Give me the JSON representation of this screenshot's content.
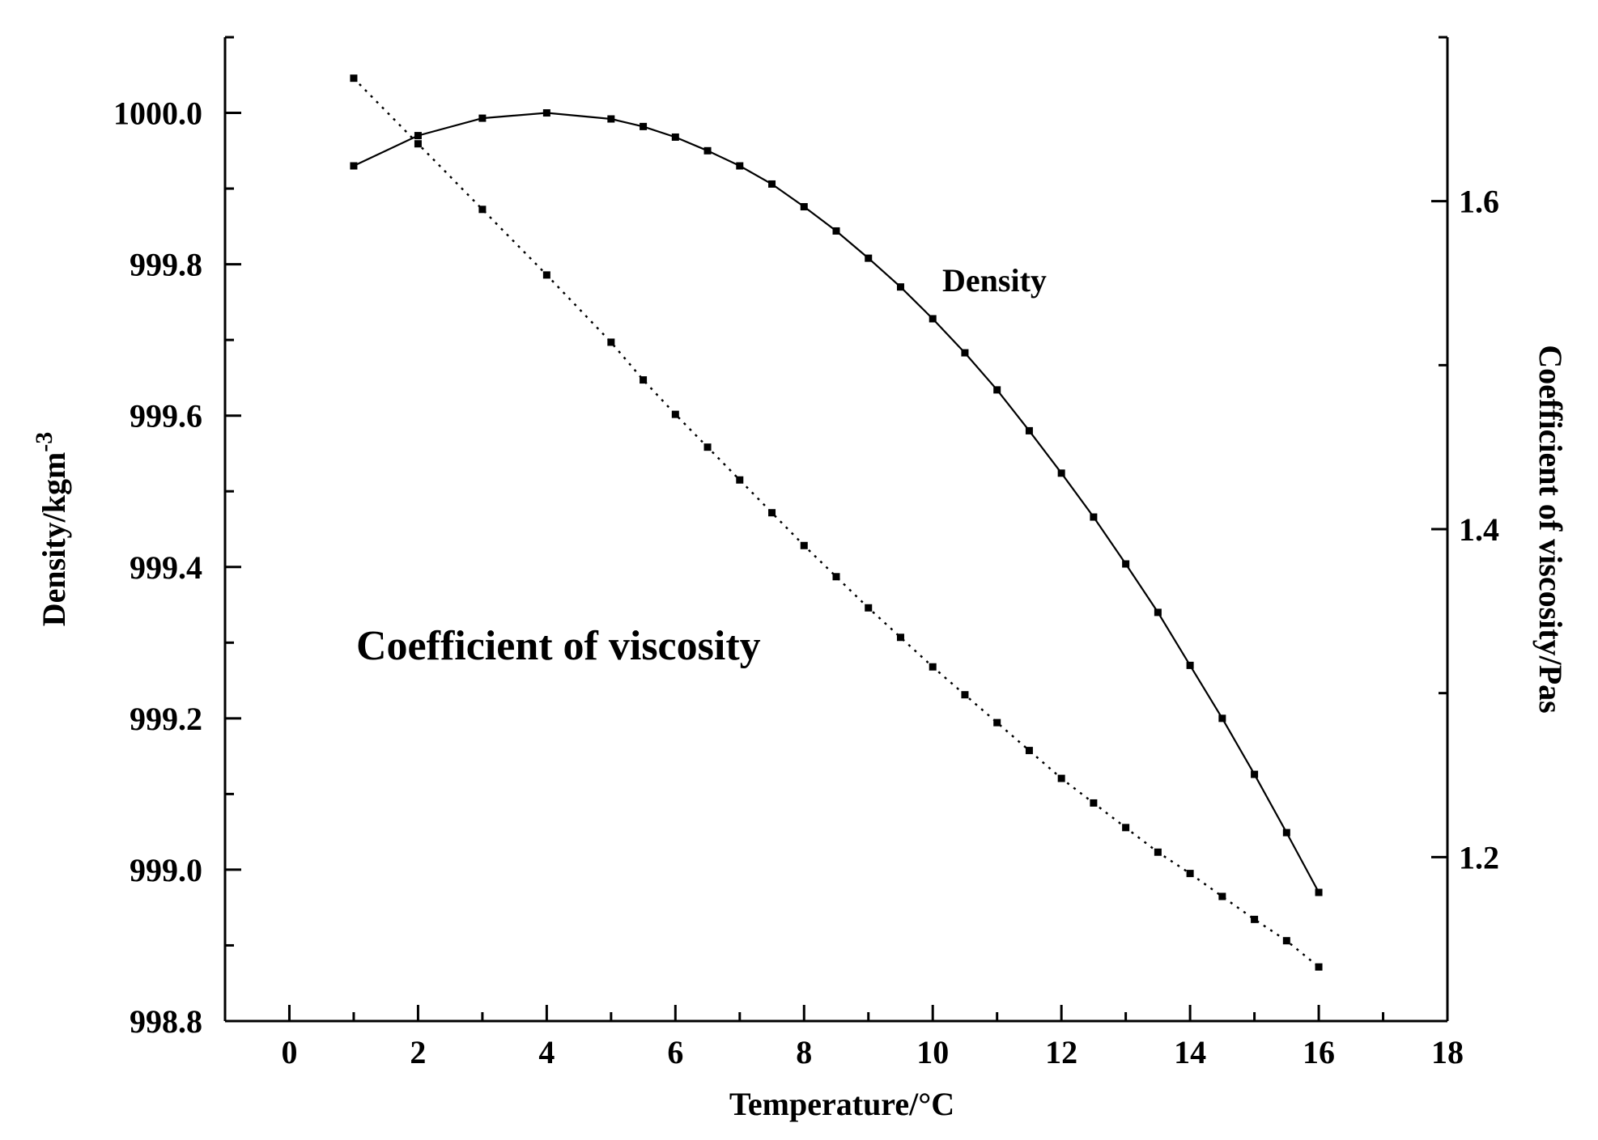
{
  "chart_data": {
    "type": "line",
    "xlabel": "Temperature/°C",
    "ylabel_left": "Density/kgm",
    "ylabel_left_superscript": "-3",
    "ylabel_right": "Coefficient of viscosity/Pas",
    "xlim": [
      -1,
      18
    ],
    "ylim_left": [
      998.8,
      1000.1
    ],
    "ylim_right": [
      1.1,
      1.7
    ],
    "x_ticks": [
      0,
      2,
      4,
      6,
      8,
      10,
      12,
      14,
      16,
      18
    ],
    "x_tick_labels": [
      "0",
      "2",
      "4",
      "6",
      "8",
      "10",
      "12",
      "14",
      "16",
      "18"
    ],
    "y_left_ticks": [
      998.8,
      999.0,
      999.2,
      999.4,
      999.6,
      999.8,
      1000.0
    ],
    "y_left_tick_labels": [
      "998.8",
      "999.0",
      "999.2",
      "999.4",
      "999.6",
      "999.8",
      "1000.0"
    ],
    "y_right_ticks": [
      1.2,
      1.4,
      1.6
    ],
    "y_right_tick_labels": [
      "1.2",
      "1.4",
      "1.6"
    ],
    "grid": false,
    "series": [
      {
        "name": "Density",
        "axis": "left",
        "line_style": "solid",
        "color": "#000000",
        "x": [
          1,
          2,
          3,
          4,
          5,
          5.5,
          6,
          6.5,
          7,
          7.5,
          8,
          8.5,
          9,
          9.5,
          10,
          10.5,
          11,
          11.5,
          12,
          12.5,
          13,
          13.5,
          14,
          14.5,
          15,
          15.5,
          16
        ],
        "y": [
          999.93,
          999.97,
          999.993,
          1000.0,
          999.992,
          999.982,
          999.968,
          999.95,
          999.93,
          999.906,
          999.876,
          999.844,
          999.808,
          999.77,
          999.728,
          999.683,
          999.634,
          999.58,
          999.524,
          999.466,
          999.404,
          999.34,
          999.27,
          999.2,
          999.126,
          999.049,
          998.97
        ]
      },
      {
        "name": "Coefficient of viscosity",
        "axis": "right",
        "line_style": "dotted",
        "color": "#000000",
        "x": [
          1,
          2,
          3,
          4,
          5,
          5.5,
          6,
          6.5,
          7,
          7.5,
          8,
          8.5,
          9,
          9.5,
          10,
          10.5,
          11,
          11.5,
          12,
          12.5,
          13,
          13.5,
          14,
          14.5,
          15,
          15.5,
          16
        ],
        "y": [
          1.675,
          1.635,
          1.595,
          1.555,
          1.514,
          1.491,
          1.47,
          1.45,
          1.43,
          1.41,
          1.39,
          1.371,
          1.352,
          1.334,
          1.316,
          1.299,
          1.282,
          1.265,
          1.248,
          1.233,
          1.218,
          1.203,
          1.19,
          1.176,
          1.162,
          1.149,
          1.133
        ]
      }
    ],
    "annotations": [
      {
        "text": "Density",
        "series": "Density"
      },
      {
        "text": "Coefficient of viscosity",
        "series": "Coefficient of viscosity"
      }
    ]
  }
}
